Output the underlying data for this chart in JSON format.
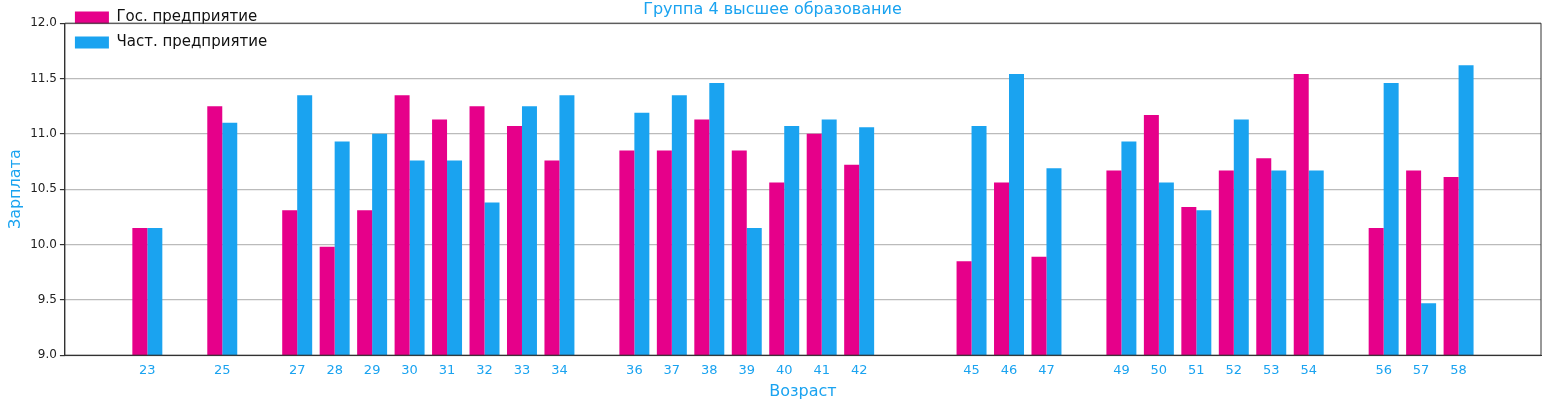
{
  "chart_data": {
    "type": "bar",
    "title": "Группа 4 высшее образование",
    "xlabel": "Возраст",
    "ylabel": "Зарплата",
    "x": [
      23,
      25,
      27,
      28,
      29,
      30,
      31,
      32,
      33,
      34,
      36,
      37,
      38,
      39,
      40,
      41,
      42,
      45,
      46,
      47,
      49,
      50,
      51,
      52,
      53,
      54,
      56,
      57,
      58
    ],
    "series": [
      {
        "name": "Гос. предприятие",
        "color": "#e6008a",
        "values": [
          10.15,
          11.25,
          10.31,
          9.98,
          10.31,
          11.35,
          11.13,
          11.25,
          11.07,
          10.76,
          10.85,
          10.85,
          11.13,
          10.85,
          10.56,
          11.0,
          10.72,
          9.85,
          10.56,
          9.89,
          10.67,
          11.17,
          10.34,
          10.67,
          10.78,
          11.54,
          10.15,
          10.67,
          10.61
        ]
      },
      {
        "name": "Част. предприятие",
        "color": "#1aa3f0",
        "values": [
          10.15,
          11.1,
          11.35,
          10.93,
          11.0,
          10.76,
          10.76,
          10.38,
          11.25,
          11.35,
          11.19,
          11.35,
          11.46,
          10.15,
          11.07,
          11.13,
          11.06,
          11.07,
          11.54,
          10.69,
          10.93,
          10.56,
          10.31,
          11.13,
          10.67,
          10.67,
          11.46,
          9.47,
          11.62
        ]
      }
    ],
    "xlim": [
      20.8,
      60.2
    ],
    "xticks": [
      23,
      25,
      27,
      28,
      29,
      30,
      31,
      32,
      33,
      34,
      36,
      37,
      38,
      39,
      40,
      41,
      42,
      45,
      46,
      47,
      49,
      50,
      51,
      52,
      53,
      54,
      56,
      57,
      58
    ],
    "ylim": [
      9.0,
      12.0
    ],
    "yticks": [
      {
        "value": 9.0,
        "label": "9.0"
      },
      {
        "value": 9.5,
        "label": "9.5"
      },
      {
        "value": 10.0,
        "label": "10.0"
      },
      {
        "value": 10.5,
        "label": "10.5"
      },
      {
        "value": 11.0,
        "label": "11.0"
      },
      {
        "value": 11.5,
        "label": "11.5"
      },
      {
        "value": 12.0,
        "label": "12.0"
      }
    ],
    "grid": "y",
    "legend": "top left"
  }
}
